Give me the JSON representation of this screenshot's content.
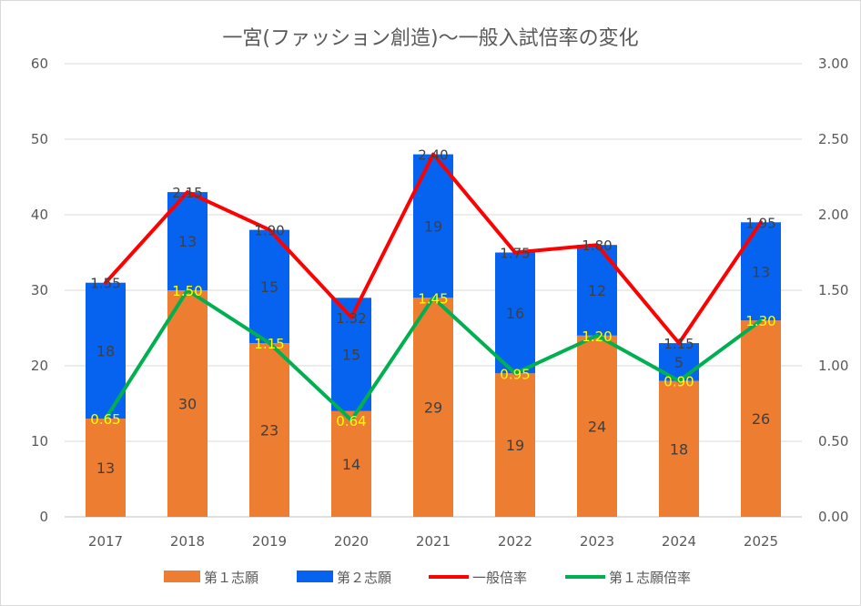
{
  "chart_data": {
    "type": "bar",
    "title": "一宮(ファッション創造)〜一般入試倍率の変化",
    "categories": [
      "2017",
      "2018",
      "2019",
      "2020",
      "2021",
      "2022",
      "2023",
      "2024",
      "2025"
    ],
    "series": [
      {
        "name": "第１志願",
        "kind": "bar-stacked",
        "axis": "left",
        "color": "#ed7d31",
        "values": [
          13,
          30,
          23,
          14,
          29,
          19,
          24,
          18,
          26
        ]
      },
      {
        "name": "第２志願",
        "kind": "bar-stacked",
        "axis": "left",
        "color": "#0563f0",
        "values": [
          18,
          13,
          15,
          15,
          19,
          16,
          12,
          5,
          13
        ]
      },
      {
        "name": "一般倍率",
        "kind": "line",
        "axis": "right",
        "color": "#ff0000",
        "values": [
          1.55,
          2.15,
          1.9,
          1.32,
          2.4,
          1.75,
          1.8,
          1.15,
          1.95
        ],
        "labels": [
          "1.55",
          "2.15",
          "1.90",
          "1.32",
          "2.40",
          "1.75",
          "1.80",
          "1.15",
          "1.95"
        ]
      },
      {
        "name": "第１志願倍率",
        "kind": "line",
        "axis": "right",
        "color": "#00b050",
        "values": [
          0.65,
          1.5,
          1.15,
          0.64,
          1.45,
          0.95,
          1.2,
          0.9,
          1.3
        ],
        "labels": [
          "0.65",
          "1.50",
          "1.15",
          "0.64",
          "1.45",
          "0.95",
          "1.20",
          "0.90",
          "1.30"
        ]
      }
    ],
    "left_axis": {
      "min": 0,
      "max": 60,
      "step": 10,
      "ticks": [
        "0",
        "10",
        "20",
        "30",
        "40",
        "50",
        "60"
      ]
    },
    "right_axis": {
      "min": 0,
      "max": 3,
      "step": 0.5,
      "ticks": [
        "0.00",
        "0.50",
        "1.00",
        "1.50",
        "2.00",
        "2.50",
        "3.00"
      ]
    },
    "grid": true,
    "legend": "bottom",
    "xlabel": "",
    "ylabel": ""
  }
}
